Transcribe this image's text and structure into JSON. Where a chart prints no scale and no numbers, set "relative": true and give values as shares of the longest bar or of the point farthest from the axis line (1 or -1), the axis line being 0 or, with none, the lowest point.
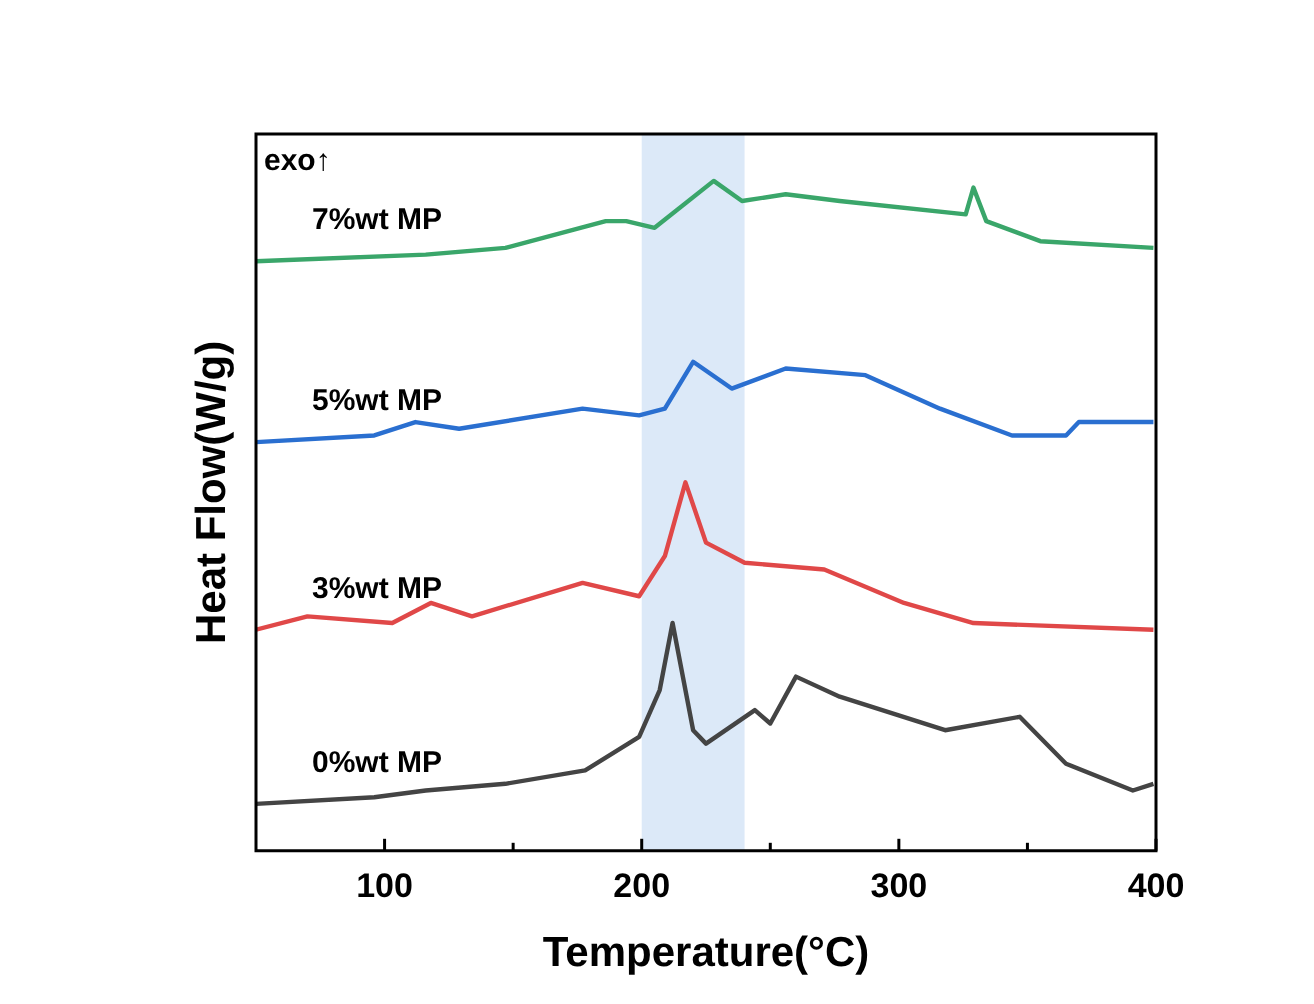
{
  "chart_data": {
    "type": "line",
    "xlabel": "Temperature(°C)",
    "ylabel": "Heat Flow(W/g)",
    "relative": true,
    "legend": false,
    "marker": "none",
    "line_style": "solid",
    "xlim": [
      50,
      400
    ],
    "xticks": [
      100,
      {
        "value": 150,
        "label": null
      },
      200,
      {
        "value": 250,
        "label": null
      },
      300,
      {
        "value": 350,
        "label": null
      },
      400
    ],
    "annotations": [
      "exo↑"
    ],
    "bands": [
      {
        "axis": "x",
        "from": 200,
        "to": 240,
        "color": "#dce9f8"
      }
    ],
    "series": [
      {
        "name": "7%wt MP",
        "color": "#3aa66a",
        "x": [
          50,
          116,
          147,
          186,
          194,
          205,
          228,
          239,
          256,
          277,
          326,
          329,
          334,
          355,
          399
        ],
        "values": [
          0.88,
          0.89,
          0.9,
          0.94,
          0.94,
          0.93,
          1,
          0.97,
          0.98,
          0.97,
          0.95,
          0.99,
          0.94,
          0.91,
          0.9
        ]
      },
      {
        "name": "5%wt MP",
        "color": "#2a6fd0",
        "x": [
          50,
          96,
          112,
          129,
          177,
          199,
          209,
          220,
          235,
          256,
          287,
          316,
          344,
          365,
          370,
          399
        ],
        "values": [
          0.61,
          0.62,
          0.64,
          0.63,
          0.66,
          0.65,
          0.66,
          0.73,
          0.69,
          0.72,
          0.71,
          0.66,
          0.62,
          0.62,
          0.64,
          0.64
        ]
      },
      {
        "name": "3%wt MP",
        "color": "#e04848",
        "x": [
          50,
          70,
          103,
          118,
          134,
          177,
          199,
          209,
          217,
          225,
          240,
          271,
          302,
          329,
          399
        ],
        "values": [
          0.33,
          0.35,
          0.34,
          0.37,
          0.35,
          0.4,
          0.38,
          0.44,
          0.55,
          0.46,
          0.43,
          0.42,
          0.37,
          0.34,
          0.33
        ]
      },
      {
        "name": "0%wt MP",
        "color": "#444444",
        "x": [
          50,
          96,
          116,
          147,
          178,
          199,
          207,
          212,
          220,
          225,
          244,
          250,
          260,
          277,
          318,
          347,
          365,
          391,
          399
        ],
        "values": [
          0.07,
          0.08,
          0.09,
          0.1,
          0.12,
          0.17,
          0.24,
          0.34,
          0.18,
          0.16,
          0.21,
          0.19,
          0.26,
          0.23,
          0.18,
          0.2,
          0.13,
          0.09,
          0.1
        ]
      }
    ]
  }
}
